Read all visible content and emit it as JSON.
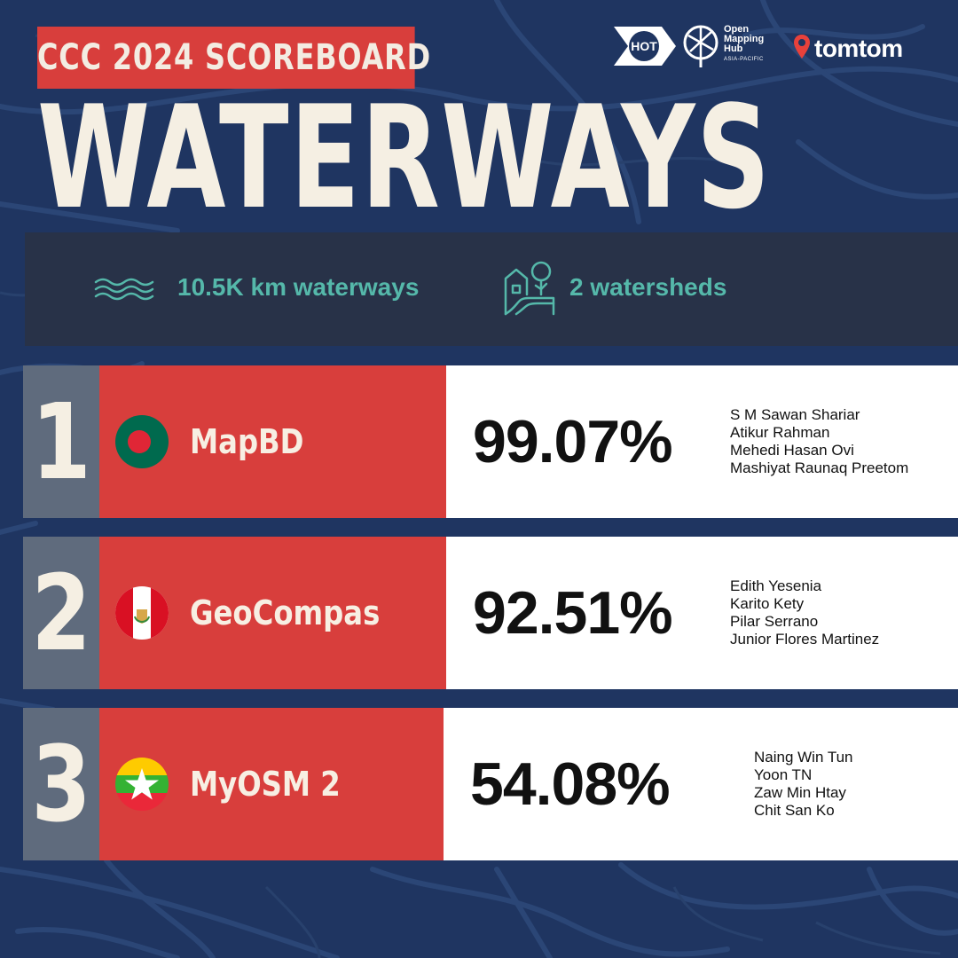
{
  "header": {
    "tag": "CCC 2024 SCOREBOARD",
    "title": "WATERWAYS"
  },
  "logos": {
    "hot": "HOT",
    "omh_lines": [
      "Open",
      "Mapping",
      "Hub"
    ],
    "omh_sub": "ASIA-PACIFIC",
    "tomtom": "tomtom"
  },
  "stats": [
    {
      "icon": "waves-icon",
      "text": "10.5K km waterways"
    },
    {
      "icon": "watershed-icon",
      "text": "2 watersheds"
    }
  ],
  "leaderboard": [
    {
      "rank": "1",
      "flag": "bangladesh-flag",
      "team": "MapBD",
      "score": "99.07%",
      "members": [
        "S M Sawan Shariar",
        "Atikur Rahman",
        "Mehedi Hasan Ovi",
        "Mashiyat Raunaq Preetom"
      ]
    },
    {
      "rank": "2",
      "flag": "peru-flag",
      "team": "GeoCompas",
      "score": "92.51%",
      "members": [
        "Edith Yesenia",
        "Karito Kety",
        "Pilar Serrano",
        "Junior Flores Martinez"
      ]
    },
    {
      "rank": "3",
      "flag": "myanmar-flag",
      "team": "MyOSM 2",
      "score": "54.08%",
      "members": [
        "Naing Win Tun",
        "Yoon TN",
        "Zaw Min Htay",
        "Chit San Ko"
      ]
    }
  ],
  "colors": {
    "background": "#1f3561",
    "accent_red": "#d83e3c",
    "rank_gray": "#5f6b7d",
    "stats_bg": "#283248",
    "teal": "#55b8aa",
    "cream": "#f5efe3"
  }
}
